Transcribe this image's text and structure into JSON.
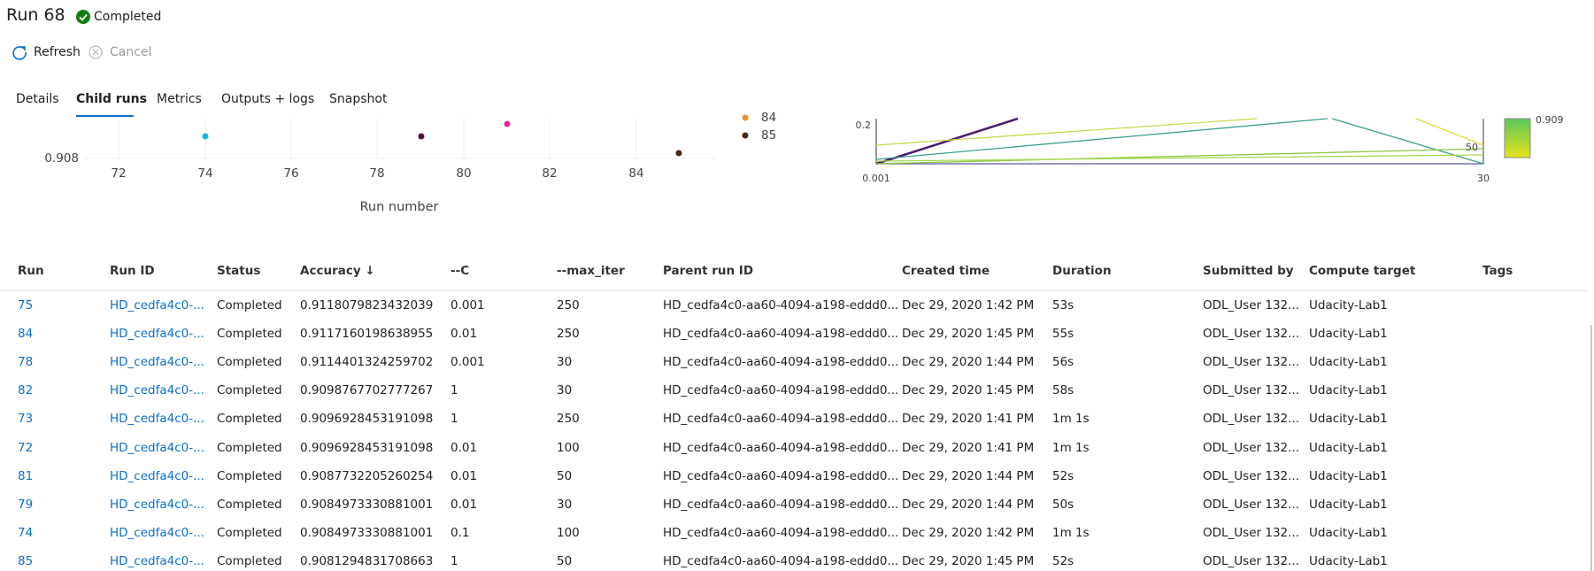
{
  "header": {
    "title": "Run 68",
    "status": "Completed"
  },
  "toolbar": {
    "refresh": "Refresh",
    "cancel": "Cancel"
  },
  "tabs": [
    "Details",
    "Child runs",
    "Metrics",
    "Outputs + logs",
    "Snapshot"
  ],
  "active_tab": 1,
  "scatter": {
    "y_tick": "0.908",
    "x_ticks": [
      "72",
      "74",
      "76",
      "78",
      "80",
      "82",
      "84"
    ],
    "x_label": "Run number",
    "legend": [
      "84",
      "85"
    ]
  },
  "parallel": {
    "y_tick": "0.2",
    "left_axis": "0.001",
    "right_axis": "30",
    "right_tick": "50",
    "colorbar": "0.909"
  },
  "table": {
    "columns": [
      "Run",
      "Run ID",
      "Status",
      "Accuracy ↓",
      "--C",
      "--max_iter",
      "Parent run ID",
      "Created time",
      "Duration",
      "Submitted by",
      "Compute target",
      "Tags"
    ],
    "rows": [
      [
        "75",
        "HD_cedfa4c0-...",
        "Completed",
        "0.9118079823432039",
        "0.001",
        "250",
        "HD_cedfa4c0-aa60-4094-a198-eddd0...",
        "Dec 29, 2020 1:42 PM",
        "53s",
        "ODL_User 132...",
        "Udacity-Lab1"
      ],
      [
        "84",
        "HD_cedfa4c0-...",
        "Completed",
        "0.9117160198638955",
        "0.01",
        "250",
        "HD_cedfa4c0-aa60-4094-a198-eddd0...",
        "Dec 29, 2020 1:45 PM",
        "55s",
        "ODL_User 132...",
        "Udacity-Lab1"
      ],
      [
        "78",
        "HD_cedfa4c0-...",
        "Completed",
        "0.9114401324259702",
        "0.001",
        "30",
        "HD_cedfa4c0-aa60-4094-a198-eddd0...",
        "Dec 29, 2020 1:44 PM",
        "56s",
        "ODL_User 132...",
        "Udacity-Lab1"
      ],
      [
        "82",
        "HD_cedfa4c0-...",
        "Completed",
        "0.9098767702777267",
        "1",
        "30",
        "HD_cedfa4c0-aa60-4094-a198-eddd0...",
        "Dec 29, 2020 1:45 PM",
        "58s",
        "ODL_User 132...",
        "Udacity-Lab1"
      ],
      [
        "73",
        "HD_cedfa4c0-...",
        "Completed",
        "0.9096928453191098",
        "1",
        "250",
        "HD_cedfa4c0-aa60-4094-a198-eddd0...",
        "Dec 29, 2020 1:41 PM",
        "1m 1s",
        "ODL_User 132...",
        "Udacity-Lab1"
      ],
      [
        "72",
        "HD_cedfa4c0-...",
        "Completed",
        "0.9096928453191098",
        "0.01",
        "100",
        "HD_cedfa4c0-aa60-4094-a198-eddd0...",
        "Dec 29, 2020 1:41 PM",
        "1m 1s",
        "ODL_User 132...",
        "Udacity-Lab1"
      ],
      [
        "81",
        "HD_cedfa4c0-...",
        "Completed",
        "0.9087732205260254",
        "0.01",
        "50",
        "HD_cedfa4c0-aa60-4094-a198-eddd0...",
        "Dec 29, 2020 1:44 PM",
        "52s",
        "ODL_User 132...",
        "Udacity-Lab1"
      ],
      [
        "79",
        "HD_cedfa4c0-...",
        "Completed",
        "0.9084973330881001",
        "0.01",
        "30",
        "HD_cedfa4c0-aa60-4094-a198-eddd0...",
        "Dec 29, 2020 1:44 PM",
        "50s",
        "ODL_User 132...",
        "Udacity-Lab1"
      ],
      [
        "74",
        "HD_cedfa4c0-...",
        "Completed",
        "0.9084973330881001",
        "0.1",
        "100",
        "HD_cedfa4c0-aa60-4094-a198-eddd0...",
        "Dec 29, 2020 1:42 PM",
        "1m 1s",
        "ODL_User 132...",
        "Udacity-Lab1"
      ],
      [
        "85",
        "HD_cedfa4c0-...",
        "Completed",
        "0.9081294831708663",
        "1",
        "50",
        "HD_cedfa4c0-aa60-4094-a198-eddd0...",
        "Dec 29, 2020 1:45 PM",
        "52s",
        "ODL_User 132...",
        "Udacity-Lab1"
      ]
    ]
  }
}
